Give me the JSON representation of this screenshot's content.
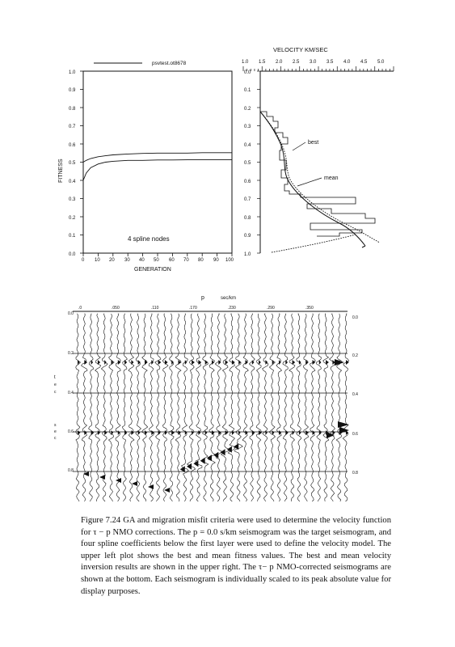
{
  "fitness_plot": {
    "legend_label": "psvtest.ot8678",
    "ylabel": "FITNESS",
    "xlabel": "GENERATION",
    "annotation": "4 spline nodes",
    "y_ticks": [
      "1.0",
      "0.9",
      "0.8",
      "0.7",
      "0.6",
      "0.5",
      "0.4",
      "0.3",
      "0.2",
      "0.1",
      "0.0"
    ],
    "x_ticks": [
      "0",
      "10",
      "20",
      "30",
      "40",
      "50",
      "60",
      "70",
      "80",
      "90",
      "100"
    ]
  },
  "velocity_plot": {
    "title": "VELOCITY   KM/SEC",
    "x_ticks": [
      "1.0",
      "1.5",
      "2.0",
      "2.5",
      "3.0",
      "3.5",
      "4.0",
      "4.5",
      "5.0"
    ],
    "y_ticks": [
      "0.0",
      "0.1",
      "0.2",
      "0.3",
      "0.4",
      "0.5",
      "0.6",
      "0.7",
      "0.8",
      "0.9",
      "1.0"
    ],
    "best_label": "best",
    "mean_label": "mean"
  },
  "seismogram_plot": {
    "top_label_p": "p",
    "top_label_unit": "sec/km",
    "p_ticks": [
      ".0",
      ".050",
      ".110",
      ".170",
      ".230",
      ".290",
      ".350"
    ],
    "left_ticks": [
      "0.0",
      "0.2",
      "0.4",
      "0.6",
      "0.8"
    ],
    "right_ticks": [
      "0.0",
      "0.2",
      "0.4",
      "0.6",
      "0.8"
    ],
    "left_axis_letters": [
      "t",
      "s",
      "e",
      "c"
    ],
    "left_axis_letters2": [
      "s",
      "e",
      "c"
    ]
  },
  "caption": {
    "label": "Figure 7.24",
    "text": "GA and migration misfit criteria were used to determine the velocity function for τ − p NMO corrections. The p = 0.0 s/km seismogram was the target seismogram, and four spline coefficients below the first layer were used to define the velocity model. The upper left plot shows the best and mean fitness values. The best and mean velocity inversion results are shown in the upper right. The τ− p NMO-corrected seismograms are shown at the bottom. Each seismogram is individually scaled to its peak absolute value for display purposes."
  },
  "chart_data": [
    {
      "type": "line",
      "xlabel": "GENERATION",
      "ylabel": "FITNESS",
      "xlim": [
        0,
        100
      ],
      "ylim": [
        0.0,
        1.0
      ],
      "x": [
        0,
        2,
        5,
        10,
        15,
        20,
        30,
        40,
        50,
        60,
        70,
        80,
        90,
        100
      ],
      "series": [
        {
          "values": [
            0.5,
            0.51,
            0.52,
            0.53,
            0.535,
            0.54,
            0.545,
            0.548,
            0.55,
            0.55,
            0.55,
            0.552,
            0.552,
            0.552
          ]
        },
        {
          "values": [
            0.4,
            0.44,
            0.47,
            0.49,
            0.5,
            0.505,
            0.51,
            0.51,
            0.512,
            0.512,
            0.513,
            0.513,
            0.513,
            0.513
          ]
        }
      ]
    },
    {
      "type": "line",
      "title": "VELOCITY   KM/SEC",
      "xlim": [
        1.0,
        5.0
      ],
      "ylim": [
        0.0,
        1.0
      ],
      "series": [
        {
          "name": "best",
          "x": [
            1.5,
            1.7,
            2.0,
            2.2,
            2.35,
            2.5,
            2.8,
            3.2,
            3.7,
            4.3
          ],
          "y": [
            0.3,
            0.35,
            0.42,
            0.5,
            0.58,
            0.65,
            0.74,
            0.82,
            0.9,
            0.98
          ]
        },
        {
          "name": "mean",
          "x": [
            1.5,
            1.7,
            2.0,
            2.2,
            2.4,
            2.55,
            2.8,
            3.2,
            3.8,
            4.5
          ],
          "y": [
            0.3,
            0.35,
            0.42,
            0.5,
            0.58,
            0.65,
            0.74,
            0.82,
            0.9,
            0.98
          ]
        }
      ]
    }
  ]
}
